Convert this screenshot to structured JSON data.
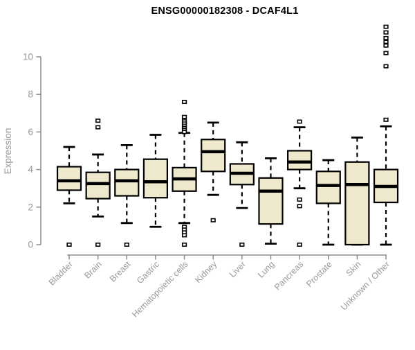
{
  "chart_data": {
    "type": "boxplot",
    "title": "ENSG00000182308 - DCAF4L1",
    "ylabel": "Expression",
    "xlabel": "",
    "ylim": [
      0,
      10
    ],
    "yticks": [
      0,
      2,
      4,
      6,
      8,
      10
    ],
    "grid": false,
    "legend": "none",
    "categories": [
      "Bladder",
      "Brain",
      "Breast",
      "Gastric",
      "Hematopoietic cells",
      "Kidney",
      "Liver",
      "Lung",
      "Pancreas",
      "Prostate",
      "Skin",
      "Unknown / Other"
    ],
    "series": [
      {
        "name": "Bladder",
        "low": 2.2,
        "q1": 2.9,
        "median": 3.4,
        "q3": 4.15,
        "high": 5.2,
        "outliers": [
          0
        ]
      },
      {
        "name": "Brain",
        "low": 1.5,
        "q1": 2.45,
        "median": 3.25,
        "q3": 3.85,
        "high": 4.8,
        "outliers": [
          6.6,
          6.25,
          0
        ]
      },
      {
        "name": "Breast",
        "low": 1.15,
        "q1": 2.6,
        "median": 3.4,
        "q3": 4.0,
        "high": 5.3,
        "outliers": [
          0
        ]
      },
      {
        "name": "Gastric",
        "low": 0.95,
        "q1": 2.5,
        "median": 3.35,
        "q3": 4.55,
        "high": 5.85,
        "outliers": []
      },
      {
        "name": "Hematopoietic cells",
        "low": 1.15,
        "q1": 2.85,
        "median": 3.5,
        "q3": 4.1,
        "high": 5.95,
        "outliers": [
          7.6,
          6.8,
          6.6,
          6.5,
          6.4,
          6.3,
          6.2,
          6.1,
          6.0,
          0.95,
          0.8,
          0.65,
          0.5,
          0
        ]
      },
      {
        "name": "Kidney",
        "low": 2.65,
        "q1": 3.9,
        "median": 4.95,
        "q3": 5.6,
        "high": 6.5,
        "outliers": [
          1.3
        ]
      },
      {
        "name": "Liver",
        "low": 1.95,
        "q1": 3.2,
        "median": 3.8,
        "q3": 4.3,
        "high": 5.45,
        "outliers": [
          0
        ]
      },
      {
        "name": "Lung",
        "low": 0.05,
        "q1": 1.1,
        "median": 2.85,
        "q3": 3.55,
        "high": 4.6,
        "outliers": []
      },
      {
        "name": "Pancreas",
        "low": 3.0,
        "q1": 4.0,
        "median": 4.4,
        "q3": 5.0,
        "high": 6.25,
        "outliers": [
          6.55,
          2.4,
          2.05,
          0
        ]
      },
      {
        "name": "Prostate",
        "low": 0.0,
        "q1": 2.2,
        "median": 3.15,
        "q3": 3.9,
        "high": 4.5,
        "outliers": []
      },
      {
        "name": "Skin",
        "low": 0.0,
        "q1": 0.0,
        "median": 3.2,
        "q3": 4.4,
        "high": 5.7,
        "outliers": []
      },
      {
        "name": "Unknown / Other",
        "low": 0.0,
        "q1": 2.25,
        "median": 3.1,
        "q3": 4.0,
        "high": 6.3,
        "outliers": [
          6.65,
          9.5,
          10.2,
          10.6,
          10.8,
          11.0,
          11.3,
          11.6
        ]
      }
    ],
    "colors": {
      "box_fill": "#EEE8CD",
      "box_stroke": "#000000",
      "median": "#000000",
      "whisker": "#000000",
      "outlier_stroke": "#000000",
      "outlier_fill": "#ffffff",
      "axis": "#8c8c8c",
      "tick_label": "#999999",
      "title": "#000000",
      "background": "#ffffff"
    }
  }
}
